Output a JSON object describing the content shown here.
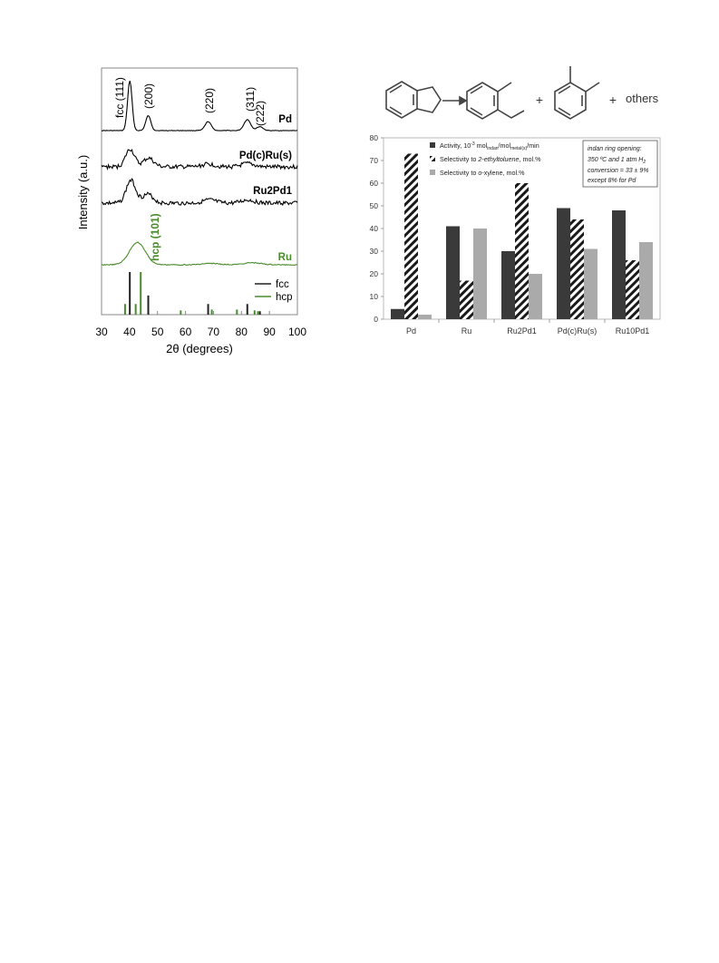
{
  "chart_data": [
    {
      "type": "line",
      "xlabel": "2θ (degrees)",
      "ylabel": "Intensity (a.u.)",
      "xlim": [
        30,
        100
      ],
      "xticks": [
        30,
        40,
        50,
        60,
        70,
        80,
        90,
        100
      ],
      "peak_labels": [
        "fcc (111)",
        "(200)",
        "(220)",
        "(311)",
        "(222)",
        "hcp (101)"
      ],
      "series": [
        {
          "name": "Pd",
          "color": "#000000",
          "peaks": [
            {
              "x": 40.1,
              "h": 1.0,
              "w": 0.8
            },
            {
              "x": 46.7,
              "h": 0.3,
              "w": 0.9
            },
            {
              "x": 68.1,
              "h": 0.18,
              "w": 1.1
            },
            {
              "x": 82.1,
              "h": 0.22,
              "w": 1.2
            },
            {
              "x": 86.6,
              "h": 0.08,
              "w": 1.1
            }
          ]
        },
        {
          "name": "Pd(c)Ru(s)",
          "color": "#000000",
          "peaks": [
            {
              "x": 40.2,
              "h": 0.65,
              "w": 1.6
            },
            {
              "x": 46.8,
              "h": 0.32,
              "w": 1.8
            },
            {
              "x": 68.2,
              "h": 0.1,
              "w": 2.2
            },
            {
              "x": 82.2,
              "h": 0.12,
              "w": 2.2
            }
          ]
        },
        {
          "name": "Ru2Pd1",
          "color": "#000000",
          "peaks": [
            {
              "x": 40.5,
              "h": 0.72,
              "w": 1.7
            },
            {
              "x": 46.5,
              "h": 0.28,
              "w": 1.9
            },
            {
              "x": 68.5,
              "h": 0.1,
              "w": 2.3
            },
            {
              "x": 82.3,
              "h": 0.1,
              "w": 2.3
            }
          ]
        },
        {
          "name": "Ru",
          "color": "#4a8b2c",
          "peaks": [
            {
              "x": 42.8,
              "h": 0.65,
              "w": 2.8
            },
            {
              "x": 69,
              "h": 0.04,
              "w": 3.0
            },
            {
              "x": 84,
              "h": 0.06,
              "w": 3.0
            }
          ]
        }
      ],
      "reference_legend": [
        "fcc",
        "hcp"
      ],
      "reference_lines": {
        "fcc": {
          "color": "#222222",
          "x": [
            40.1,
            46.7,
            68.1,
            82.1,
            86.6
          ],
          "h": [
            1.0,
            0.45,
            0.25,
            0.25,
            0.08
          ]
        },
        "hcp": {
          "color": "#4a8b2c",
          "x": [
            38.4,
            42.2,
            44.0,
            58.3,
            69.4,
            78.4,
            84.7,
            85.9
          ],
          "h": [
            0.25,
            0.25,
            1.0,
            0.1,
            0.12,
            0.12,
            0.1,
            0.08
          ]
        }
      }
    },
    {
      "type": "bar",
      "categories": [
        "Pd",
        "Ru",
        "Ru2Pd1",
        "Pd(c)Ru(s)",
        "Ru10Pd1"
      ],
      "ylim": [
        0,
        80
      ],
      "yticks": [
        0,
        10,
        20,
        30,
        40,
        50,
        60,
        70,
        80
      ],
      "series": [
        {
          "name": "Activity, 10⁻³ mol_indan/mol_metal(s)/min",
          "style": "solid-dark",
          "color": "#3a3a3a",
          "values": [
            4.5,
            41,
            30,
            49,
            48
          ]
        },
        {
          "name": "Selectivity to 2-ethyltoluene, mol.%",
          "style": "hatched",
          "color": "#1a1a1a",
          "values": [
            73,
            17,
            60,
            44,
            26
          ]
        },
        {
          "name": "Selectivity to o-xylene, mol.%",
          "style": "solid-light",
          "color": "#aaaaaa",
          "values": [
            2,
            40,
            20,
            31,
            34
          ]
        }
      ],
      "legend_display": {
        "activity_prefix": "Activity, 10",
        "activity_exp": "-3",
        "activity_mid": " mol",
        "activity_sub1": "indan",
        "activity_slash": "/mol",
        "activity_sub2": "metal(s)",
        "activity_suffix": "/min",
        "sel1_prefix": "Selectivity to ",
        "sel1_italic": "2-ethyltoluene",
        "sel1_suffix": ", mol.%",
        "sel2_prefix": "Selectivity to ",
        "sel2_italic": "o",
        "sel2_suffix": "-xylene, mol.%"
      },
      "annotation": {
        "line1": "indan ring opening:",
        "line2a": "350 ºC and 1 atm H",
        "line2sub": "2",
        "line3": "conversion = 33 ± 9%",
        "line4": "except 8% for Pd"
      },
      "scheme": {
        "plus1": "+",
        "plus2": "+",
        "others": "others"
      }
    }
  ]
}
